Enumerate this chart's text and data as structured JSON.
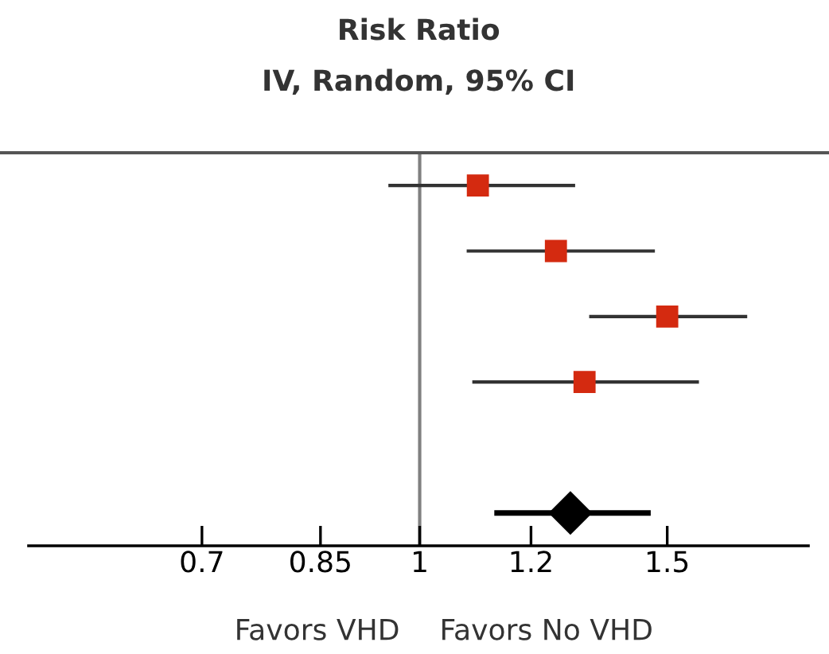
{
  "chart_data": {
    "type": "scatter",
    "title": "Risk Ratio",
    "subtitle": "IV, Random, 95% CI",
    "orientation": "horizontal",
    "log": "x",
    "categories": [
      null,
      null,
      null,
      null,
      null,
      null
    ],
    "series": [
      {
        "color": "#d42a10",
        "marker": "square",
        "values": [
          1.1,
          1.25,
          1.5,
          1.31,
          null,
          null
        ],
        "errors": [
          [
            0.95,
            1.29
          ],
          [
            1.08,
            1.47
          ],
          [
            1.32,
            1.71
          ],
          [
            1.09,
            1.58
          ],
          null,
          null
        ]
      },
      {
        "color": "#000000",
        "marker": "diamond",
        "values": [
          null,
          null,
          null,
          null,
          null,
          1.28
        ],
        "errors": [
          null,
          null,
          null,
          null,
          null,
          [
            1.13,
            1.46
          ]
        ]
      }
    ],
    "xlim": [
      0.527,
      1.89
    ],
    "xticks": [
      {
        "value": 0.7,
        "label": "0.7"
      },
      {
        "value": 0.85,
        "label": "0.85"
      },
      1,
      1.2,
      1.5
    ],
    "ref_lines": [
      {
        "axis": "x",
        "value": 1,
        "color": "#808080"
      }
    ],
    "annotations": [
      "Favors VHD",
      "Favors No VHD"
    ],
    "grid": false,
    "legend": false,
    "tick_labels": "x"
  }
}
